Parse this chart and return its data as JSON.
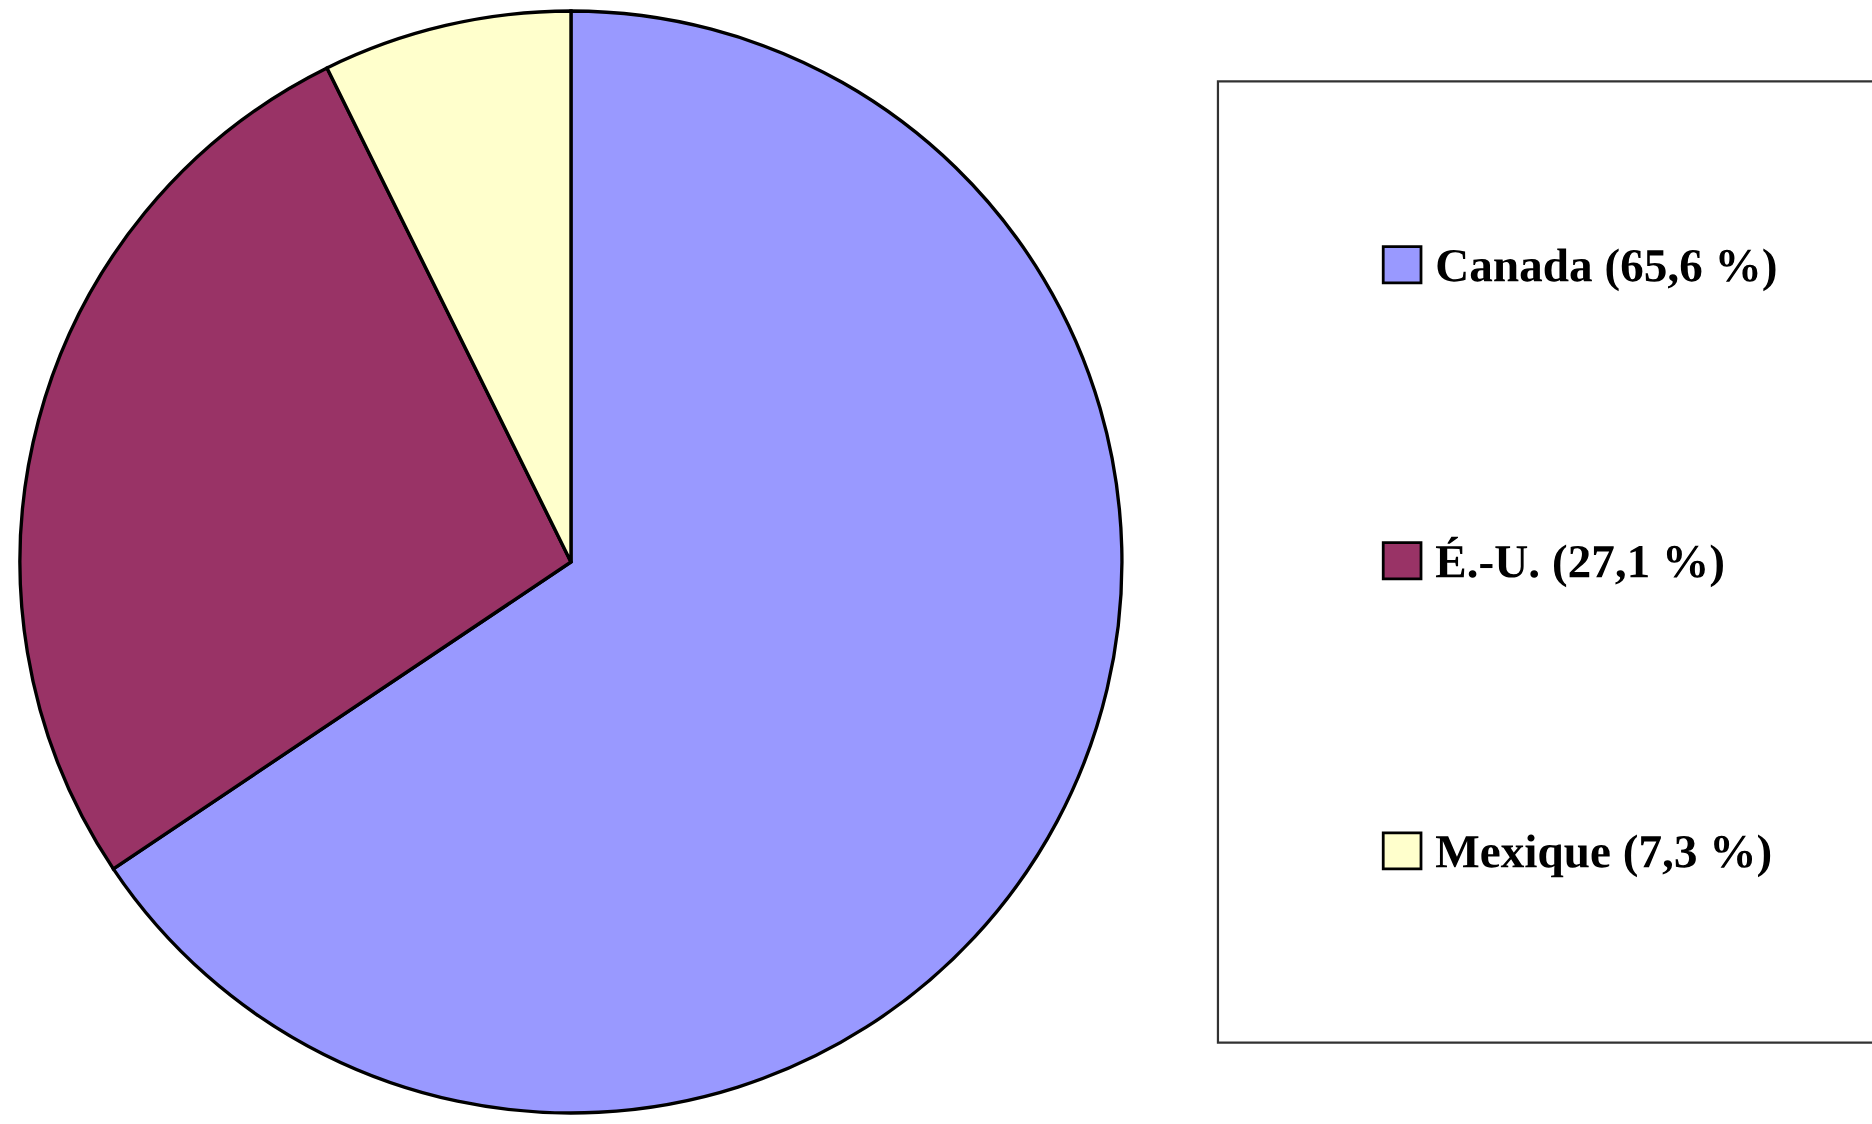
{
  "chart_data": {
    "type": "pie",
    "categories": [
      "Canada (65,6 %)",
      "É.-U. (27,1 %)",
      "Mexique (7,3 %)"
    ],
    "values": [
      65.6,
      27.1,
      7.3
    ],
    "colors": [
      "#9999ff",
      "#993366",
      "#ffffcc"
    ],
    "legend": "right"
  }
}
